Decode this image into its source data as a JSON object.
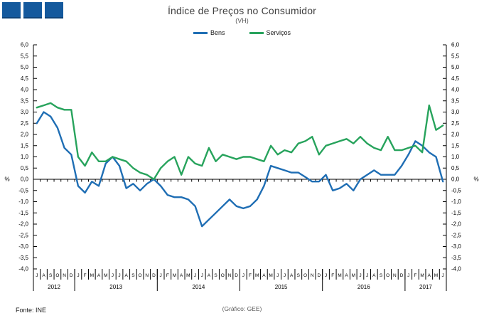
{
  "header": {
    "title": "Índice de Preços no Consumidor",
    "subtitle": "(VH)"
  },
  "footer": {
    "source": "Fonte: INE",
    "credit": "(Gráfico: GEE)"
  },
  "logo": {
    "square_count": 3,
    "color": "#14599d"
  },
  "chart_data": {
    "type": "line",
    "title": "Índice de Preços no Consumidor",
    "subtitle": "(VH)",
    "ylabel": "%",
    "ylabel_right": "%",
    "ylim": [
      -4.0,
      6.0
    ],
    "ytick_step": 0.5,
    "decimal_separator": ",",
    "grid": false,
    "legend_position": "top",
    "axis_color": "#000000",
    "x_months": [
      "J",
      "A",
      "S",
      "O",
      "N",
      "D",
      "J",
      "F",
      "M",
      "A",
      "M",
      "J",
      "J",
      "A",
      "S",
      "O",
      "N",
      "D",
      "J",
      "F",
      "M",
      "A",
      "M",
      "J",
      "J",
      "A",
      "S",
      "O",
      "N",
      "D",
      "J",
      "F",
      "M",
      "A",
      "M",
      "J",
      "J",
      "A",
      "S",
      "O",
      "N",
      "D",
      "J",
      "F",
      "M",
      "A",
      "M",
      "J",
      "J",
      "A",
      "S",
      "O",
      "N",
      "D",
      "J",
      "F",
      "M",
      "A",
      "M",
      "J"
    ],
    "year_groups": [
      {
        "year": "2012",
        "months": 6
      },
      {
        "year": "2013",
        "months": 12
      },
      {
        "year": "2014",
        "months": 12
      },
      {
        "year": "2015",
        "months": 12
      },
      {
        "year": "2016",
        "months": 12
      },
      {
        "year": "2017",
        "months": 6
      }
    ],
    "series": [
      {
        "name": "Bens",
        "color": "#1f6eb4",
        "values": [
          2.5,
          3.0,
          2.8,
          2.3,
          1.4,
          1.1,
          -0.3,
          -0.6,
          -0.1,
          -0.3,
          0.7,
          1.0,
          0.6,
          -0.4,
          -0.2,
          -0.5,
          -0.2,
          0.0,
          -0.3,
          -0.7,
          -0.8,
          -0.8,
          -0.9,
          -1.2,
          -2.1,
          -1.8,
          -1.5,
          -1.2,
          -0.9,
          -1.2,
          -1.3,
          -1.2,
          -0.9,
          -0.3,
          0.6,
          0.5,
          0.4,
          0.3,
          0.3,
          0.1,
          -0.1,
          -0.1,
          0.2,
          -0.5,
          -0.4,
          -0.2,
          -0.5,
          0.0,
          0.2,
          0.4,
          0.2,
          0.2,
          0.2,
          0.6,
          1.1,
          1.7,
          1.5,
          1.2,
          1.0,
          -0.1
        ]
      },
      {
        "name": "Serviços",
        "color": "#27a35c",
        "values": [
          3.2,
          3.3,
          3.4,
          3.2,
          3.1,
          3.1,
          1.0,
          0.6,
          1.2,
          0.8,
          0.8,
          1.0,
          0.9,
          0.8,
          0.5,
          0.3,
          0.2,
          0.0,
          0.5,
          0.8,
          1.0,
          0.2,
          1.0,
          0.7,
          0.6,
          1.4,
          0.8,
          1.1,
          1.0,
          0.9,
          1.0,
          1.0,
          0.9,
          0.8,
          1.5,
          1.1,
          1.3,
          1.2,
          1.6,
          1.7,
          1.9,
          1.1,
          1.5,
          1.6,
          1.7,
          1.8,
          1.6,
          1.9,
          1.6,
          1.4,
          1.3,
          1.9,
          1.3,
          1.3,
          1.4,
          1.5,
          1.2,
          3.3,
          2.2,
          2.4
        ]
      }
    ]
  }
}
